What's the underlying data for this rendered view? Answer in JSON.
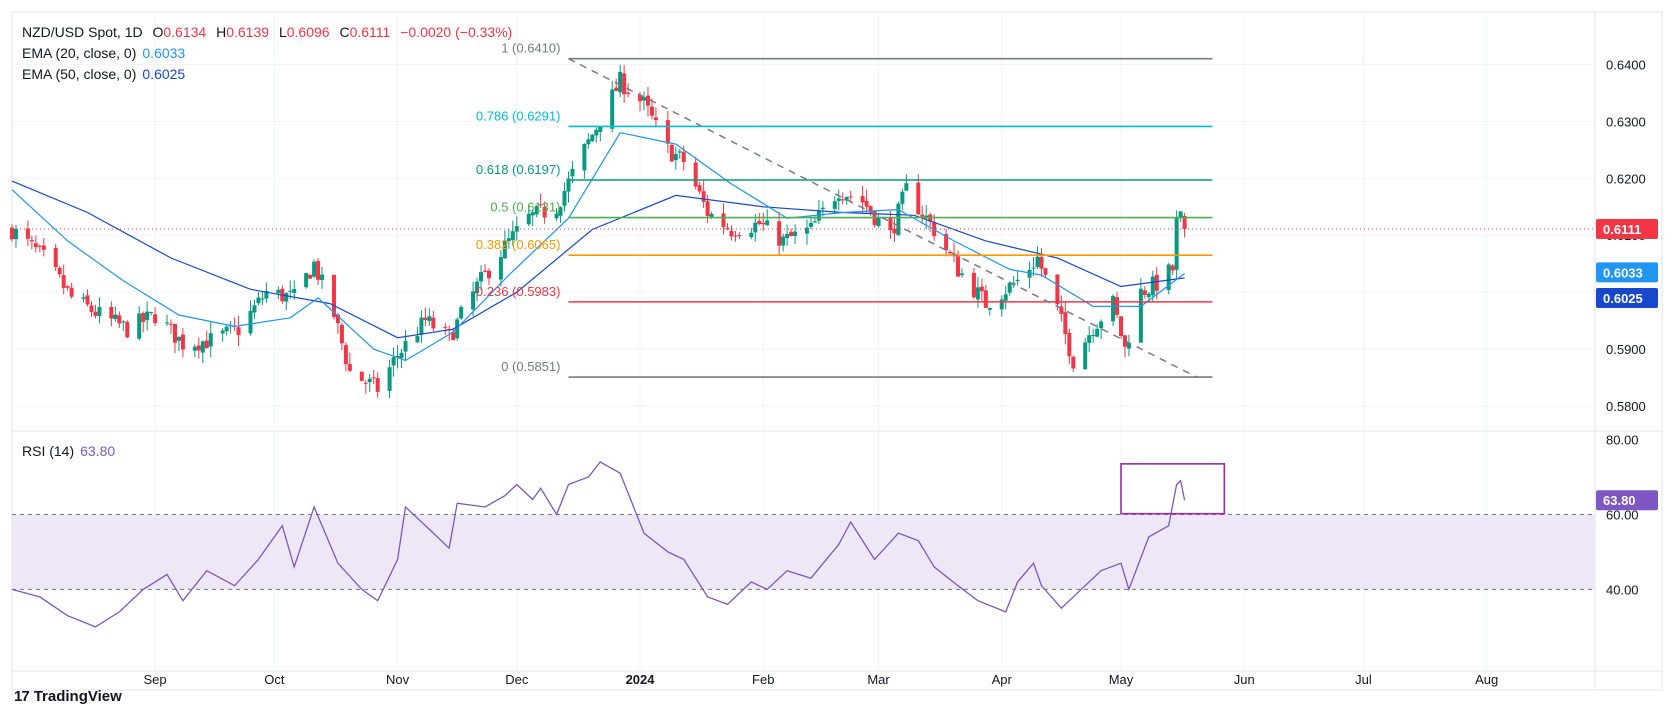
{
  "header": {
    "symbol": "NZD/USD Spot, 1D",
    "open_label": "O",
    "open": "0.6134",
    "high_label": "H",
    "high": "0.6139",
    "low_label": "L",
    "low": "0.6096",
    "close_label": "C",
    "close": "0.6111",
    "change": "−0.0020 (−0.33%)"
  },
  "indicators": {
    "ema20": {
      "label": "EMA (20, close, 0)",
      "value": "0.6033",
      "color": "#2196F3"
    },
    "ema50": {
      "label": "EMA (50, close, 0)",
      "value": "0.6025",
      "color": "#1848CC"
    },
    "rsi": {
      "label": "RSI (14)",
      "value": "63.80",
      "color": "#7E57C2"
    }
  },
  "colors": {
    "up": "#089981",
    "down": "#F23645",
    "trend": "#787B86",
    "rsi_band": "#EDE7F6",
    "box": "#9C27B0"
  },
  "fib_levels": [
    {
      "ratio": "1",
      "price": 0.641,
      "label": "1 (0.6410)",
      "color": "#787B86"
    },
    {
      "ratio": "0.786",
      "price": 0.6291,
      "label": "0.786 (0.6291)",
      "color": "#00BCD4"
    },
    {
      "ratio": "0.618",
      "price": 0.6197,
      "label": "0.618 (0.6197)",
      "color": "#089981"
    },
    {
      "ratio": "0.5",
      "price": 0.6131,
      "label": "0.5 (0.6131)",
      "color": "#4CAF50"
    },
    {
      "ratio": "0.382",
      "price": 0.6065,
      "label": "0.382 (0.6065)",
      "color": "#FF9800"
    },
    {
      "ratio": "0.236",
      "price": 0.5983,
      "label": "0.236 (0.5983)",
      "color": "#F23645"
    },
    {
      "ratio": "0",
      "price": 0.5851,
      "label": "0 (0.5851)",
      "color": "#787B86"
    }
  ],
  "price_axis": {
    "ticks": [
      "0.6400",
      "0.6300",
      "0.6200",
      "0.6100",
      "0.6000",
      "0.5900",
      "0.5800"
    ],
    "range": [
      0.5758,
      0.6492
    ],
    "last_price": {
      "value": "0.6111",
      "color": "#F23645"
    },
    "ema20_tag": {
      "value": "0.6033",
      "color": "#2196F3"
    },
    "ema50_tag": {
      "value": "0.6025",
      "color": "#1848CC"
    }
  },
  "rsi_axis": {
    "ticks": [
      "80.00",
      "60.00",
      "40.00"
    ],
    "range": [
      18.5,
      82
    ],
    "band": [
      40,
      60
    ],
    "last": {
      "value": "63.80",
      "color": "#7E57C2"
    }
  },
  "time_axis": {
    "labels": [
      "Sep",
      "Oct",
      "Nov",
      "Dec",
      "2024",
      "Feb",
      "Mar",
      "Apr",
      "May",
      "Jun",
      "Jul",
      "Aug"
    ],
    "bold": [
      "2024"
    ]
  },
  "brand": "TradingView",
  "chart_data": {
    "type": "candlestick",
    "title": "NZD/USD Spot, 1D",
    "x_range": [
      "2023-08",
      "2024-08"
    ],
    "y_range": [
      0.5758,
      0.6492
    ],
    "grid": true,
    "trendline": {
      "from": {
        "date": "2023-12-14",
        "price": 0.641
      },
      "to": {
        "date": "2024-05-20",
        "price": 0.5851
      },
      "style": "dashed"
    },
    "close_path": [
      [
        "2023-07-27",
        0.611
      ],
      [
        "2023-08-04",
        0.606
      ],
      [
        "2023-08-11",
        0.599
      ],
      [
        "2023-08-18",
        0.596
      ],
      [
        "2023-08-25",
        0.5935
      ],
      [
        "2023-09-01",
        0.596
      ],
      [
        "2023-09-08",
        0.591
      ],
      [
        "2023-09-15",
        0.5915
      ],
      [
        "2023-09-22",
        0.5935
      ],
      [
        "2023-09-29",
        0.6
      ],
      [
        "2023-10-06",
        0.599
      ],
      [
        "2023-10-11",
        0.605
      ],
      [
        "2023-10-16",
        0.596
      ],
      [
        "2023-10-20",
        0.586
      ],
      [
        "2023-10-27",
        0.583
      ],
      [
        "2023-11-01",
        0.589
      ],
      [
        "2023-11-08",
        0.595
      ],
      [
        "2023-11-14",
        0.592
      ],
      [
        "2023-11-21",
        0.601
      ],
      [
        "2023-11-28",
        0.608
      ],
      [
        "2023-12-04",
        0.613
      ],
      [
        "2023-12-11",
        0.615
      ],
      [
        "2023-12-18",
        0.625
      ],
      [
        "2023-12-27",
        0.637
      ],
      [
        "2024-01-02",
        0.633
      ],
      [
        "2024-01-08",
        0.625
      ],
      [
        "2024-01-12",
        0.623
      ],
      [
        "2024-01-18",
        0.614
      ],
      [
        "2024-01-24",
        0.611
      ],
      [
        "2024-01-31",
        0.612
      ],
      [
        "2024-02-06",
        0.609
      ],
      [
        "2024-02-13",
        0.611
      ],
      [
        "2024-02-20",
        0.618
      ],
      [
        "2024-02-26",
        0.616
      ],
      [
        "2024-03-04",
        0.61
      ],
      [
        "2024-03-08",
        0.618
      ],
      [
        "2024-03-15",
        0.611
      ],
      [
        "2024-03-21",
        0.604
      ],
      [
        "2024-03-28",
        0.598
      ],
      [
        "2024-04-05",
        0.602
      ],
      [
        "2024-04-10",
        0.606
      ],
      [
        "2024-04-15",
        0.597
      ],
      [
        "2024-04-19",
        0.588
      ],
      [
        "2024-04-24",
        0.594
      ],
      [
        "2024-04-29",
        0.598
      ],
      [
        "2024-05-02",
        0.59
      ],
      [
        "2024-05-06",
        0.6
      ],
      [
        "2024-05-10",
        0.6015
      ],
      [
        "2024-05-14",
        0.604
      ],
      [
        "2024-05-15",
        0.612
      ],
      [
        "2024-05-16",
        0.613
      ],
      [
        "2024-05-17",
        0.6111
      ]
    ],
    "ema20": [
      [
        "2023-07-27",
        0.618
      ],
      [
        "2023-08-10",
        0.609
      ],
      [
        "2023-08-24",
        0.602
      ],
      [
        "2023-09-07",
        0.596
      ],
      [
        "2023-09-21",
        0.594
      ],
      [
        "2023-10-05",
        0.5955
      ],
      [
        "2023-10-12",
        0.599
      ],
      [
        "2023-10-26",
        0.59
      ],
      [
        "2023-11-03",
        0.588
      ],
      [
        "2023-11-15",
        0.593
      ],
      [
        "2023-11-29",
        0.603
      ],
      [
        "2023-12-14",
        0.613
      ],
      [
        "2023-12-27",
        0.628
      ],
      [
        "2024-01-10",
        0.626
      ],
      [
        "2024-01-24",
        0.619
      ],
      [
        "2024-02-07",
        0.613
      ],
      [
        "2024-02-21",
        0.614
      ],
      [
        "2024-03-06",
        0.6145
      ],
      [
        "2024-03-20",
        0.609
      ],
      [
        "2024-04-03",
        0.604
      ],
      [
        "2024-04-11",
        0.603
      ],
      [
        "2024-04-24",
        0.5975
      ],
      [
        "2024-05-06",
        0.5975
      ],
      [
        "2024-05-17",
        0.6033
      ]
    ],
    "ema50": [
      [
        "2023-07-27",
        0.6195
      ],
      [
        "2023-08-15",
        0.614
      ],
      [
        "2023-09-05",
        0.606
      ],
      [
        "2023-09-25",
        0.6005
      ],
      [
        "2023-10-15",
        0.598
      ],
      [
        "2023-11-01",
        0.592
      ],
      [
        "2023-11-15",
        0.5935
      ],
      [
        "2023-12-01",
        0.6
      ],
      [
        "2023-12-20",
        0.611
      ],
      [
        "2024-01-10",
        0.617
      ],
      [
        "2024-02-01",
        0.615
      ],
      [
        "2024-02-21",
        0.614
      ],
      [
        "2024-03-10",
        0.6135
      ],
      [
        "2024-03-28",
        0.609
      ],
      [
        "2024-04-15",
        0.606
      ],
      [
        "2024-05-01",
        0.601
      ],
      [
        "2024-05-17",
        0.6025
      ]
    ],
    "rsi": [
      [
        "2023-07-27",
        40
      ],
      [
        "2023-08-03",
        38
      ],
      [
        "2023-08-10",
        33
      ],
      [
        "2023-08-17",
        30
      ],
      [
        "2023-08-23",
        34
      ],
      [
        "2023-08-29",
        40
      ],
      [
        "2023-09-04",
        44
      ],
      [
        "2023-09-08",
        37
      ],
      [
        "2023-09-14",
        45
      ],
      [
        "2023-09-21",
        41
      ],
      [
        "2023-09-27",
        48
      ],
      [
        "2023-10-03",
        57
      ],
      [
        "2023-10-06",
        46
      ],
      [
        "2023-10-11",
        62
      ],
      [
        "2023-10-17",
        47
      ],
      [
        "2023-10-23",
        40
      ],
      [
        "2023-10-27",
        37
      ],
      [
        "2023-11-01",
        48
      ],
      [
        "2023-11-03",
        62
      ],
      [
        "2023-11-09",
        56
      ],
      [
        "2023-11-14",
        51
      ],
      [
        "2023-11-16",
        63
      ],
      [
        "2023-11-23",
        62
      ],
      [
        "2023-11-28",
        65
      ],
      [
        "2023-12-01",
        68
      ],
      [
        "2023-12-05",
        64
      ],
      [
        "2023-12-07",
        67
      ],
      [
        "2023-12-11",
        60
      ],
      [
        "2023-12-14",
        68
      ],
      [
        "2023-12-19",
        70
      ],
      [
        "2023-12-22",
        74
      ],
      [
        "2023-12-27",
        71
      ],
      [
        "2024-01-02",
        55
      ],
      [
        "2024-01-08",
        50
      ],
      [
        "2024-01-12",
        48
      ],
      [
        "2024-01-18",
        38
      ],
      [
        "2024-01-23",
        36
      ],
      [
        "2024-01-29",
        42
      ],
      [
        "2024-02-02",
        40
      ],
      [
        "2024-02-07",
        45
      ],
      [
        "2024-02-13",
        43
      ],
      [
        "2024-02-20",
        52
      ],
      [
        "2024-02-23",
        58
      ],
      [
        "2024-02-29",
        48
      ],
      [
        "2024-03-06",
        55
      ],
      [
        "2024-03-11",
        53
      ],
      [
        "2024-03-15",
        46
      ],
      [
        "2024-03-21",
        41
      ],
      [
        "2024-03-26",
        37
      ],
      [
        "2024-04-02",
        34
      ],
      [
        "2024-04-05",
        42
      ],
      [
        "2024-04-09",
        47
      ],
      [
        "2024-04-11",
        41
      ],
      [
        "2024-04-16",
        35
      ],
      [
        "2024-04-22",
        41
      ],
      [
        "2024-04-26",
        45
      ],
      [
        "2024-05-01",
        47
      ],
      [
        "2024-05-03",
        40
      ],
      [
        "2024-05-08",
        54
      ],
      [
        "2024-05-13",
        57
      ],
      [
        "2024-05-15",
        68
      ],
      [
        "2024-05-16",
        69
      ],
      [
        "2024-05-17",
        63.8
      ]
    ]
  }
}
